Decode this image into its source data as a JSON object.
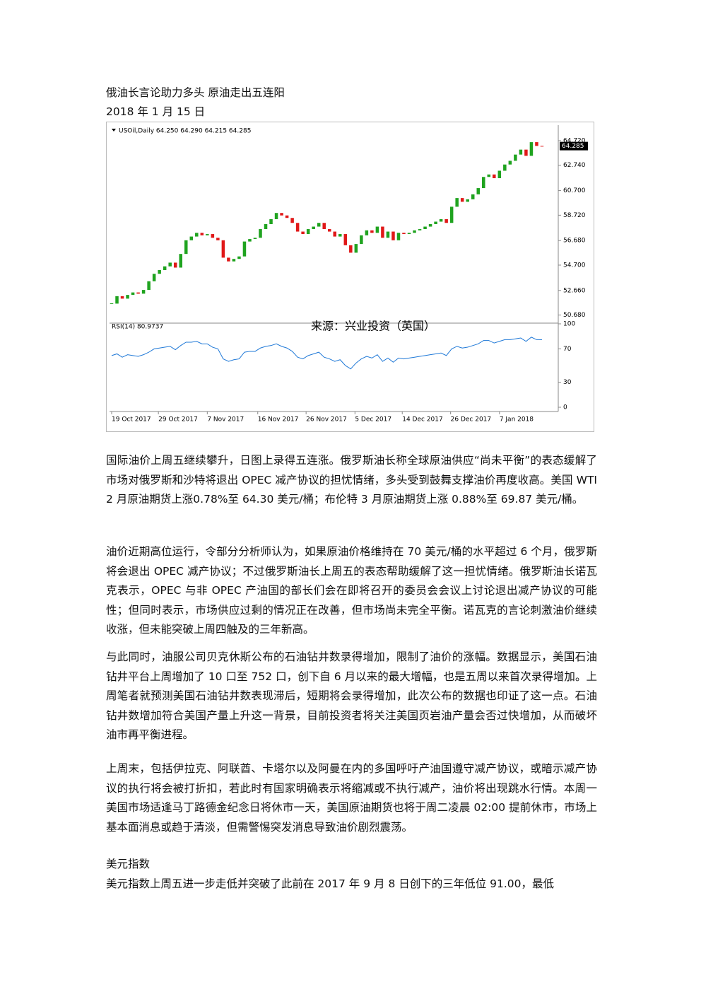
{
  "title": "俄油长言论助力多头 原油走出五连阳",
  "date": "2018 年 1 月 15 日",
  "figure": {
    "type": "candlestick",
    "header": "USOil,Daily  64.250 64.290 64.215 64.285",
    "source": "来源：兴业投资（英国）",
    "rsi_label": "RSI(14) 80.9737",
    "last_price": 64.285,
    "up_color": "#1fa31f",
    "down_color": "#e01818",
    "rsi_color": "#1e78d7",
    "close": [
      51.6,
      52.2,
      52.0,
      52.3,
      52.5,
      52.4,
      52.7,
      53.4,
      54.0,
      54.3,
      54.6,
      54.9,
      54.5,
      55.6,
      56.7,
      57.0,
      57.3,
      57.1,
      57.2,
      56.9,
      56.7,
      55.3,
      55.0,
      55.2,
      55.4,
      56.6,
      56.8,
      56.9,
      57.6,
      58.0,
      58.4,
      58.9,
      58.7,
      58.5,
      58.1,
      57.4,
      57.2,
      57.6,
      57.8,
      58.1,
      57.6,
      57.4,
      57.0,
      57.2,
      56.3,
      55.7,
      56.4,
      57.1,
      57.5,
      57.3,
      57.8,
      56.9,
      57.4,
      56.7,
      57.3,
      57.2,
      57.3,
      57.5,
      57.6,
      57.8,
      58.0,
      58.2,
      58.4,
      58.1,
      59.4,
      60.1,
      59.8,
      60.0,
      60.4,
      60.9,
      61.8,
      62.0,
      61.7,
      62.3,
      62.8,
      63.1,
      63.6,
      64.0,
      63.5,
      64.6,
      64.3,
      64.285
    ],
    "rsi": [
      62,
      64,
      60,
      63,
      62,
      61,
      63,
      66,
      70,
      71,
      72,
      73,
      69,
      74,
      78,
      78,
      79,
      76,
      76,
      72,
      70,
      58,
      55,
      57,
      58,
      66,
      67,
      67,
      71,
      73,
      74,
      76,
      73,
      71,
      67,
      60,
      58,
      62,
      64,
      66,
      60,
      58,
      55,
      57,
      50,
      46,
      53,
      58,
      61,
      59,
      63,
      55,
      59,
      54,
      59,
      58,
      59,
      60,
      61,
      62,
      63,
      64,
      65,
      62,
      70,
      73,
      71,
      72,
      74,
      76,
      80,
      80,
      77,
      79,
      81,
      81,
      82,
      83,
      79,
      84,
      81,
      80.9737
    ],
    "xlim": [
      0,
      83
    ],
    "xticks": [
      {
        "value": 0,
        "label": "19 Oct 2017"
      },
      {
        "value": 8.8,
        "label": "29 Oct 2017"
      },
      {
        "value": 18,
        "label": "7 Nov 2017"
      },
      {
        "value": 27.5,
        "label": "16 Nov 2017"
      },
      {
        "value": 36.6,
        "label": "26 Nov 2017"
      },
      {
        "value": 45.8,
        "label": "5 Dec 2017"
      },
      {
        "value": 54.7,
        "label": "14 Dec 2017"
      },
      {
        "value": 63.8,
        "label": "26 Dec 2017"
      },
      {
        "value": 73,
        "label": "7 Jan 2018"
      }
    ],
    "ylim": [
      50.2,
      65.8
    ],
    "yticks": [
      {
        "value": 64.72,
        "label": "64.720"
      },
      {
        "value": 62.74,
        "label": "62.740"
      },
      {
        "value": 60.7,
        "label": "60.700"
      },
      {
        "value": 58.72,
        "label": "58.720"
      },
      {
        "value": 56.68,
        "label": "56.680"
      },
      {
        "value": 54.7,
        "label": "54.700"
      },
      {
        "value": 52.66,
        "label": "52.660"
      },
      {
        "value": 50.68,
        "label": "50.680"
      }
    ],
    "rsi_lim": [
      0,
      100
    ],
    "rsi_ticks": [
      100,
      70,
      30,
      0
    ]
  },
  "paragraphs": [
    "国际油价上周五继续攀升，日图上录得五连涨。俄罗斯油长称全球原油供应“尚未平衡”的表态缓解了市场对俄罗斯和沙特将退出 OPEC 减产协议的担忧情绪，多头受到鼓舞支撑油价再度收高。美国 WTI 2 月原油期货上涨0.78%至 64.30 美元/桶；布伦特 3 月原油期货上涨 0.88%至 69.87 美元/桶。",
    "油价近期高位运行，令部分分析师认为，如果原油价格维持在 70 美元/桶的水平超过 6 个月，俄罗斯将会退出 OPEC 减产协议；不过俄罗斯油长上周五的表态帮助缓解了这一担忧情绪。俄罗斯油长诺瓦克表示，OPEC 与非 OPEC 产油国的部长们会在即将召开的委员会会议上讨论退出减产协议的可能性；但同时表示，市场供应过剩的情况正在改善，但市场尚未完全平衡。诺瓦克的言论刺激油价继续收涨，但未能突破上周四触及的三年新高。",
    "与此同时，油服公司贝克休斯公布的石油钻井数录得增加，限制了油价的涨幅。数据显示，美国石油钻井平台上周增加了 10 口至 752 口，创下自 6 月以来的最大增幅，也是五周以来首次录得增加。上周笔者就预测美国石油钻井数表现滞后，短期将会录得增加，此次公布的数据也印证了这一点。石油钻井数增加符合美国产量上升这一背景，目前投资者将关注美国页岩油产量会否过快增加，从而破坏油市再平衡进程。",
    "上周末，包括伊拉克、阿联酋、卡塔尔以及阿曼在内的多国呼吁产油国遵守减产协议，或暗示减产协议的执行将会被打折扣，若此时有国家明确表示将缩减或不执行减产，油价将出现跳水行情。本周一美国市场适逢马丁路德金纪念日将休市一天，美国原油期货也将于周二凌晨 02:00 提前休市，市场上基本面消息或趋于清淡，但需警惕突发消息导致油价剧烈震荡。"
  ],
  "section_heading": "美元指数",
  "section_text": "美元指数上周五进一步走低并突破了此前在 2017 年 9 月 8 日创下的三年低位 91.00，最低"
}
